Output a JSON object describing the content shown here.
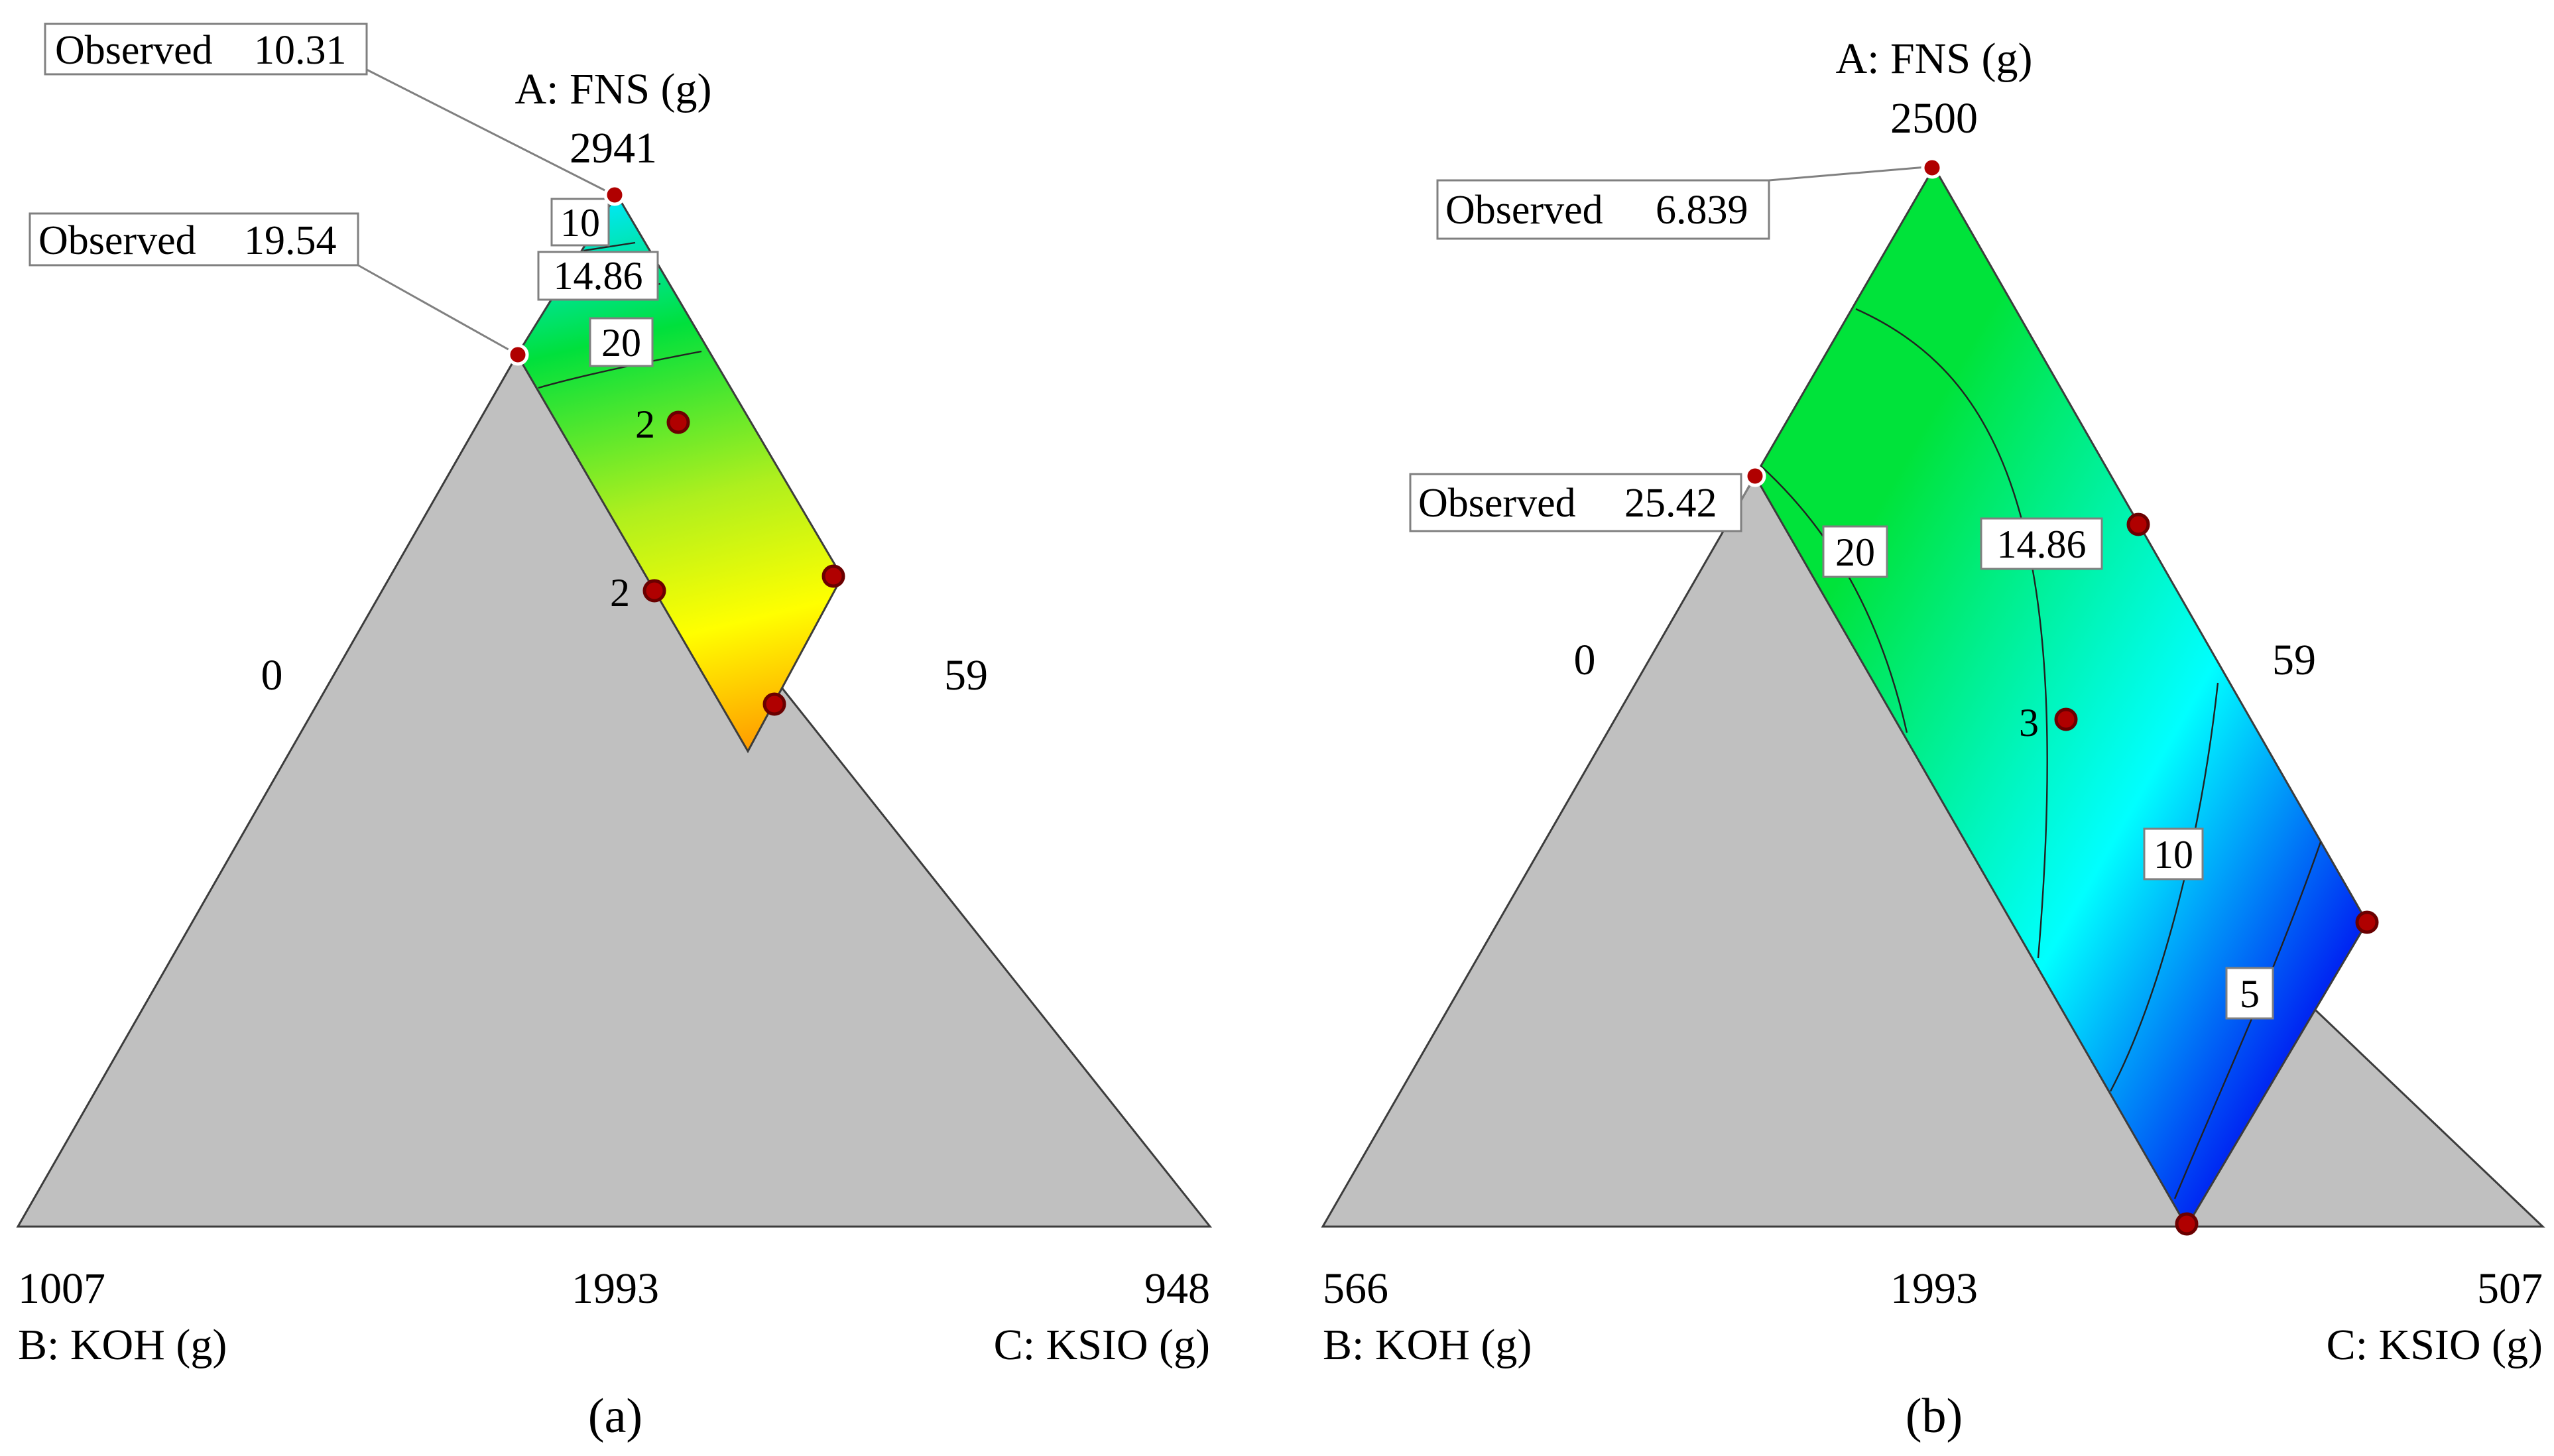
{
  "colors": {
    "constraint_region": "#c0c0c0",
    "point_fill": "#b00000",
    "point_stroke": "#6a0000",
    "label_box": "#ffffff",
    "label_border": "#808080",
    "gradient_a": [
      "#00e8ff",
      "#00e03c",
      "#aeef1e",
      "#ffff00",
      "#ff9c00"
    ],
    "gradient_b": [
      "#00e33a",
      "#00ffff",
      "#0000f0"
    ]
  },
  "chart_data": [
    {
      "type": "ternary-contour",
      "panel_label": "(a)",
      "axes": {
        "A": {
          "label": "A: FNS (g)",
          "max": "2941"
        },
        "B": {
          "label": "B: KOH (g)",
          "max": "1007"
        },
        "C": {
          "label": "C: KSIO (g)",
          "max": "948"
        },
        "left_edge_value": "0",
        "right_edge_value": "59",
        "bottom_edge_value": "1993"
      },
      "contours": [
        "10",
        "14.86",
        "20"
      ],
      "observed": [
        {
          "label": "Observed",
          "value": "10.31"
        },
        {
          "label": "Observed",
          "value": "19.54"
        }
      ],
      "design_point_counts": [
        "2",
        "2"
      ]
    },
    {
      "type": "ternary-contour",
      "panel_label": "(b)",
      "axes": {
        "A": {
          "label": "A: FNS (g)",
          "max": "2500"
        },
        "B": {
          "label": "B: KOH (g)",
          "max": "566"
        },
        "C": {
          "label": "C: KSIO (g)",
          "max": "507"
        },
        "left_edge_value": "0",
        "right_edge_value": "59",
        "bottom_edge_value": "1993"
      },
      "contours": [
        "20",
        "14.86",
        "10",
        "5"
      ],
      "observed": [
        {
          "label": "Observed",
          "value": "6.839"
        },
        {
          "label": "Observed",
          "value": "25.42"
        }
      ],
      "design_point_counts": [
        "3"
      ]
    }
  ]
}
